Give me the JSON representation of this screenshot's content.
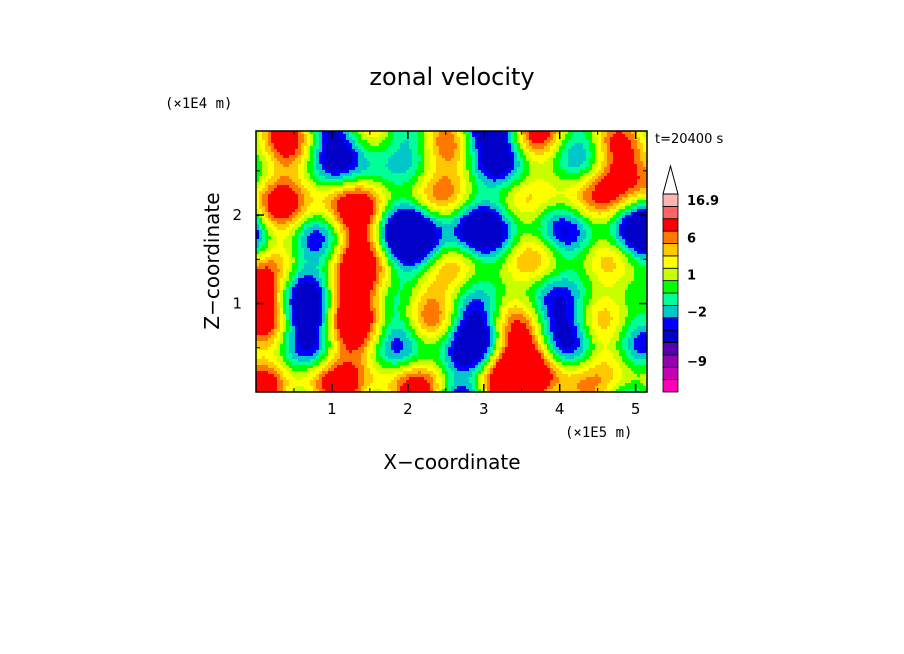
{
  "chart_data": {
    "type": "heatmap",
    "title": "zonal velocity",
    "xlabel": "X−coordinate",
    "ylabel": "Z−coordinate",
    "x_unit_label": "(×1E5 m)",
    "y_unit_label": "(×1E4 m)",
    "time_label": "t=20400 s",
    "xlim": [
      0,
      5.15
    ],
    "ylim": [
      0,
      2.95
    ],
    "x_ticks": [
      1,
      2,
      3,
      4,
      5
    ],
    "x_tick_labels": [
      "1",
      "2",
      "3",
      "4",
      "5"
    ],
    "y_ticks": [
      1,
      2
    ],
    "y_tick_labels": [
      "1",
      "2"
    ],
    "colorbar": {
      "levels": [
        {
          "label": "",
          "color": "#ff00b8"
        },
        {
          "label": "",
          "color": "#c800b4"
        },
        {
          "label": "−9",
          "color": "#9600b4"
        },
        {
          "label": "",
          "color": "#5a00b4"
        },
        {
          "label": "",
          "color": "#0000c8"
        },
        {
          "label": "",
          "color": "#0000ff"
        },
        {
          "label": "−2",
          "color": "#00c8c8"
        },
        {
          "label": "",
          "color": "#00ff96"
        },
        {
          "label": "",
          "color": "#00ff00"
        },
        {
          "label": "1",
          "color": "#c8ff00"
        },
        {
          "label": "",
          "color": "#ffff00"
        },
        {
          "label": "",
          "color": "#ffc800"
        },
        {
          "label": "6",
          "color": "#ff7800"
        },
        {
          "label": "",
          "color": "#ff0000"
        },
        {
          "label": "",
          "color": "#ff6464"
        },
        {
          "label": "16.9",
          "color": "#ffb4b4"
        }
      ],
      "extend_arrow_color": "#ffffff"
    },
    "field_palette": [
      "#0000c8",
      "#0000ff",
      "#00c8c8",
      "#00ff96",
      "#00ff00",
      "#c8ff00",
      "#ffff00",
      "#ffc800",
      "#ff7800",
      "#ff0000"
    ]
  }
}
